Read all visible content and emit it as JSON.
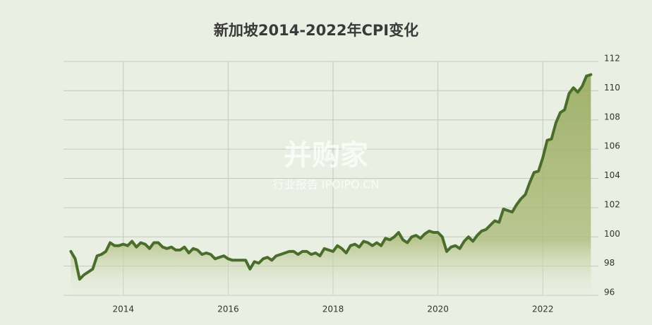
{
  "chart_data": {
    "type": "area-line",
    "title": "新加坡2014-2022年CPI变化",
    "watermark": {
      "brand": "并购家",
      "tagline": "行业报告 IPOIPO.CN"
    },
    "x": [
      2013,
      2013.083,
      2013.167,
      2013.25,
      2013.333,
      2013.417,
      2013.5,
      2013.583,
      2013.667,
      2013.75,
      2013.833,
      2013.917,
      2014,
      2014.083,
      2014.167,
      2014.25,
      2014.333,
      2014.417,
      2014.5,
      2014.583,
      2014.667,
      2014.75,
      2014.833,
      2014.917,
      2015,
      2015.083,
      2015.167,
      2015.25,
      2015.333,
      2015.417,
      2015.5,
      2015.583,
      2015.667,
      2015.75,
      2015.833,
      2015.917,
      2016,
      2016.083,
      2016.167,
      2016.25,
      2016.333,
      2016.417,
      2016.5,
      2016.583,
      2016.667,
      2016.75,
      2016.833,
      2016.917,
      2017,
      2017.083,
      2017.167,
      2017.25,
      2017.333,
      2017.417,
      2017.5,
      2017.583,
      2017.667,
      2017.75,
      2017.833,
      2017.917,
      2018,
      2018.083,
      2018.167,
      2018.25,
      2018.333,
      2018.417,
      2018.5,
      2018.583,
      2018.667,
      2018.75,
      2018.833,
      2018.917,
      2019,
      2019.083,
      2019.167,
      2019.25,
      2019.333,
      2019.417,
      2019.5,
      2019.583,
      2019.667,
      2019.75,
      2019.833,
      2019.917,
      2020,
      2020.083,
      2020.167,
      2020.25,
      2020.333,
      2020.417,
      2020.5,
      2020.583,
      2020.667,
      2020.75,
      2020.833,
      2020.917,
      2021,
      2021.083,
      2021.167,
      2021.25,
      2021.333,
      2021.417,
      2021.5,
      2021.583,
      2021.667,
      2021.75,
      2021.833,
      2021.917,
      2022,
      2022.083,
      2022.167,
      2022.25,
      2022.333,
      2022.417,
      2022.5,
      2022.583,
      2022.667,
      2022.75,
      2022.833,
      2022.917
    ],
    "series": [
      {
        "color": "#4b6d2b",
        "values": [
          99.0,
          98.5,
          97.1,
          97.4,
          97.6,
          97.8,
          98.7,
          98.8,
          99.0,
          99.6,
          99.4,
          99.4,
          99.5,
          99.4,
          99.7,
          99.3,
          99.6,
          99.5,
          99.2,
          99.6,
          99.6,
          99.3,
          99.2,
          99.3,
          99.1,
          99.1,
          99.3,
          98.9,
          99.2,
          99.1,
          98.8,
          98.9,
          98.8,
          98.5,
          98.6,
          98.7,
          98.5,
          98.4,
          98.4,
          98.4,
          98.4,
          97.8,
          98.3,
          98.2,
          98.5,
          98.6,
          98.4,
          98.7,
          98.8,
          98.9,
          99.0,
          99.0,
          98.8,
          99.0,
          99.0,
          98.8,
          98.9,
          98.7,
          99.2,
          99.1,
          99.0,
          99.4,
          99.2,
          98.9,
          99.4,
          99.5,
          99.3,
          99.7,
          99.6,
          99.4,
          99.6,
          99.4,
          99.9,
          99.8,
          100.0,
          100.3,
          99.8,
          99.6,
          100.0,
          100.1,
          99.9,
          100.2,
          100.4,
          100.3,
          100.3,
          100.0,
          99.0,
          99.3,
          99.4,
          99.2,
          99.7,
          100.0,
          99.7,
          100.1,
          100.4,
          100.5,
          100.8,
          101.1,
          101.0,
          101.9,
          101.8,
          101.7,
          102.2,
          102.6,
          102.9,
          103.7,
          104.4,
          104.5,
          105.4,
          106.6,
          106.7,
          107.8,
          108.5,
          108.7,
          109.8,
          110.2,
          109.9,
          110.3,
          111.0,
          111.1
        ]
      }
    ],
    "xlim": [
      2012.86,
      2023.06
    ],
    "xticks": [
      2014,
      2016,
      2018,
      2020,
      2022
    ],
    "ylim": [
      96,
      112
    ],
    "yticks": [
      96,
      98,
      100,
      102,
      104,
      106,
      108,
      110,
      112
    ],
    "grid": true
  }
}
